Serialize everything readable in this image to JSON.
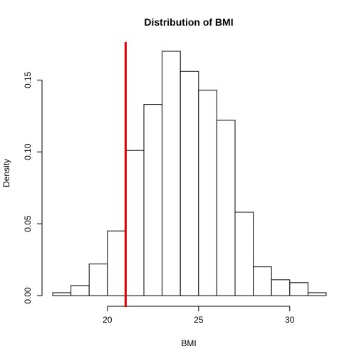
{
  "chart_data": {
    "type": "histogram",
    "title": "Distribution of BMI",
    "xlabel": "BMI",
    "ylabel": "Density",
    "xlim": [
      17,
      32
    ],
    "ylim": [
      0,
      0.17
    ],
    "bins": [
      {
        "x0": 17,
        "x1": 18,
        "density": 0.002
      },
      {
        "x0": 18,
        "x1": 19,
        "density": 0.007
      },
      {
        "x0": 19,
        "x1": 20,
        "density": 0.022
      },
      {
        "x0": 20,
        "x1": 21,
        "density": 0.045
      },
      {
        "x0": 21,
        "x1": 22,
        "density": 0.101
      },
      {
        "x0": 22,
        "x1": 23,
        "density": 0.133
      },
      {
        "x0": 23,
        "x1": 24,
        "density": 0.17
      },
      {
        "x0": 24,
        "x1": 25,
        "density": 0.156
      },
      {
        "x0": 25,
        "x1": 26,
        "density": 0.143
      },
      {
        "x0": 26,
        "x1": 27,
        "density": 0.122
      },
      {
        "x0": 27,
        "x1": 28,
        "density": 0.058
      },
      {
        "x0": 28,
        "x1": 29,
        "density": 0.02
      },
      {
        "x0": 29,
        "x1": 30,
        "density": 0.011
      },
      {
        "x0": 30,
        "x1": 31,
        "density": 0.009
      },
      {
        "x0": 31,
        "x1": 32,
        "density": 0.002
      }
    ],
    "x_ticks": [
      20,
      25,
      30
    ],
    "y_ticks": [
      "0.00",
      "0.05",
      "0.10",
      "0.15"
    ],
    "reference_line": {
      "x": 21,
      "color": "#e00000"
    },
    "bar_fill": "#ffffff",
    "bar_stroke": "#000000",
    "grid": false
  }
}
